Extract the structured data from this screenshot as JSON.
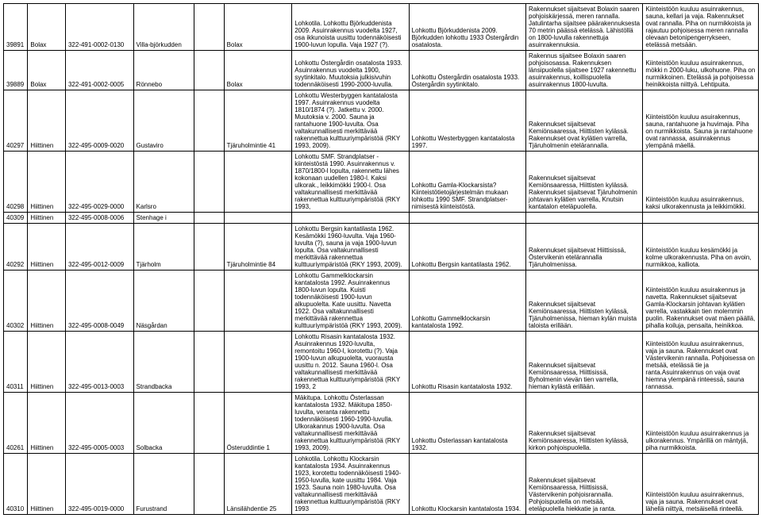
{
  "table": {
    "font_size": 8,
    "border_color": "#000000",
    "background": "#ffffff",
    "columns": [
      "id",
      "municipality",
      "code",
      "name",
      "blank",
      "address",
      "desc1",
      "desc2",
      "desc3",
      "desc4"
    ],
    "col_widths_pct": [
      3.2,
      5,
      9,
      8,
      4,
      9,
      15.5,
      15.5,
      15.5,
      15.3
    ],
    "rows": [
      {
        "id": "39891",
        "municipality": "Bolax",
        "code": "322-491-0002-0130",
        "name": "Villa-björkudden",
        "blank": "",
        "address": "Bolax",
        "desc1": "Lohkotila. Lohkottu Björkuddenista 2009. Asuinrakennus vuodelta 1927, osa ikkunoista uusittu todennäköisesti 1900-luvun lopulla. Vaja 1927 (?).",
        "desc2": "Lohkottu Björkuddenista 2009. Björkudden lohkottu 1933 Östergårdin osatalosta.",
        "desc3": "Rakennukset sijaitsevat Bolaxin saaren pohjoiskärjessä, meren rannalla. Jatulintarha sijaitsee päärakennuksesta 70 metrin päässä etelässä. Lähistöllä on 1800-luvulla rakennettuja asuinrakennuksia.",
        "desc4": "Kiinteistöön kuuluu asuinrakennus, sauna, kellari ja vaja. Rakennukset ovat rannalla. Piha on nurmikkoista ja rajautuu pohjoisessa meren rannalla olevaan betonipengerrykseen, etelässä metsään."
      },
      {
        "id": "39889",
        "municipality": "Bolax",
        "code": "322-491-0002-0005",
        "name": "Rönnebo",
        "blank": "",
        "address": "Bolax",
        "desc1": "Lohkottu Östergårdin osatalosta 1933. Asuinrakennus vuodelta 1900, syytinkitalo. Muutoksia julkisivuhin todennäköisesti 1990-2000-luvulla.",
        "desc2": "Lohkottu Östergårdin osatalosta 1933. Östergårdin syytinkitalo.",
        "desc3": "Rakennus sijaitsee Bolaxin saaren pohjoisosassa. Rakennuksen länsipuolella sijaitsee 1927 rakennettu asuinrakennus, koillispuolella asuinrakennus 1800-luvulta.",
        "desc4": "Kiinteistöön kuuluu asuinrakennus, mökki n 2000-luku, ulkohuone.  Piha on nurmikkoinen. Etelässä ja pohjoisessa heinikkoista niittyä. Lehtipuita."
      },
      {
        "id": "40297",
        "municipality": "Hiittinen",
        "code": "322-495-0009-0020",
        "name": "Gustaviro",
        "blank": "",
        "address": "Tjäruholmintie 41",
        "desc1": "Lohkottu Westerbyggen kantatalosta 1997. Asuinrakennus vuodelta 1810/1874 (?). Jatkettu v. 2000. Muutoksia v. 2000. Sauna ja rantahuone 1900-luvulta. Osa valtakunnallisesti merkittävää rakennettua kulttuuriympäristöä (RKY 1993, 2009).",
        "desc2": "Lohkottu Westerbyggen kantatalosta 1997.",
        "desc3": "Rakennukset sijaitsevat Kemiönsaaressa, Hiittisten kylässä. Rakennukset ovat kylätien varrella, Tjäruholmenin etelärannalla.",
        "desc4": "Kiinteistöön kuuluu asuirakennus, sauna, rantahuone ja huvimaja. Piha on nurmikkoista. Sauna ja rantahuone ovat rannassa, asuinrakennus ylempänä mäellä."
      },
      {
        "id": "40298",
        "municipality": "Hiittinen",
        "code": "322-495-0029-0000",
        "name": "Karlsro",
        "blank": "",
        "address": "",
        "desc1": "Lohkottu SMF. Strandplatser -kiinteistöstä 1990. Asuinrakennus v. 1870/1800-l lopulta, rakennettu lähes kokonaan uudellen 1980-l. Kaksi ulkorak., leikkimökki 1900-l. Osa valtakunnallisesti merkittävää rakennettua kulttuuriympäristöä (RKY 1993,",
        "desc2": "Lohkottu Gamla-Klockarsista? Kiinteistötietojärjestelmän mukaan lohkottu 1990 SMF. Strandplatser-nimisestä kiinteistöstä.",
        "desc3": "Rakennukset sijaitsevat Kemiönsaaressa, Hiittisten kylässä. Rakennukset sijaitsevat Tjäruholmenin johtavan kylätien varrella, Knutsin kantatalon eteläpuolella.",
        "desc4": "Kiinteistöön kuuluu asuinrakennus, kaksi ulkorakennusta ja leikkimökki."
      },
      {
        "id": "40309",
        "municipality": "Hiittinen",
        "code": "322-495-0008-0006",
        "name": "Stenhage i",
        "blank": "",
        "address": "",
        "desc1": "",
        "desc2": "",
        "desc3": "",
        "desc4": ""
      },
      {
        "id": "40292",
        "municipality": "Hiittinen",
        "code": "322-495-0012-0009",
        "name": "Tjärholm",
        "blank": "",
        "address": "Tjäruholmintie 84",
        "desc1": "Lohkottu Bergsin kantatilasta 1962. Kesämökki 1960-luvulta. Vaja 1960-luvulta (?), sauna ja vaja 1900-luvun lopulta. Osa valtakunnallisesti merkittävää rakennettua kulttuuriympäristöä (RKY 1993, 2009).",
        "desc2": "Lohkottu Bergsin kantatilasta 1962.",
        "desc3": "Rakennukset sijaitsevat Hiittisissä, Östervikenin etelärannalla Tjäruholmenissa.",
        "desc4": "Kiinteistöön kuuluu kesämökki ja kolme ulkorakennusta. Piha on avoin, nurmikkoa, kalliota."
      },
      {
        "id": "40302",
        "municipality": "Hiittinen",
        "code": "322-495-0008-0049",
        "name": "Näsgårdan",
        "blank": "",
        "address": "",
        "desc1": "Lohkottu Gammelklockarsin kantatalosta 1992. Asuinrakennus 1800-luvun lopulta. Kuisti todennäköisesti 1900-luvun alkupuolelta. Kate uusittu. Navetta 1922. Osa valtakunnallisesti merkittävää rakennettua kulttuuriympäristöä (RKY 1993, 2009).",
        "desc2": "Lohkottu Gammelklockarsin kantatalosta 1992.",
        "desc3": "Rakennukset sijaitsevat Kemiönsaaressa, Hiittisten kylässä, Tjäruholmenissa, hieman kylän muista taloista erillään.",
        "desc4": "Kiinteistöön kuuluu asuirakennus ja navetta. Rakennukset sijaitsevat Gamla-Klockarsin johtavan kylätien varrella, vastakkain tien molemmin puolin. Rakennukset ovat mäen päällä, pihalla koiluja, pensaita, heinikkoa."
      },
      {
        "id": "40311",
        "municipality": "Hiittinen",
        "code": "322-495-0013-0003",
        "name": "Strandbacka",
        "blank": "",
        "address": "",
        "desc1": "Lohkottu Risasin kantatalosta 1932. Asuinrakennus 1920-luvulta, remontoitu 1960-l, korotettu (?). Vaja 1900-luvun alkupuolelta, vuorausta uusittu n. 2012. Sauna 1960-l. Osa valtakunnallisesti merkittävää rakennettua kulttuuriympäristöä (RKY 1993, 2",
        "desc2": "Lohkottu Risasin kantatalosta 1932.",
        "desc3": "Rakennukset sijaitsevat Kemiönsaaressa, Hiittisissä, Byholmenin vievän tien varrella, hieman kylästä erillään.",
        "desc4": "Kiinteistöön kuuluu asuinrakennus, vaja ja sauna. Rakennukset ovat Västervikenin rannalla. Pohjoisessa on metsää, etelässä tie ja ranta.Asuinrakennus on vaja ovat hiemna ylempänä rinteessä, sauna rannassa."
      },
      {
        "id": "40261",
        "municipality": "Hiittinen",
        "code": "322-495-0005-0003",
        "name": "Solbacka",
        "blank": "",
        "address": "Österuddintie 1",
        "desc1": "Mäkitupa. Lohkottu Österlassan kantatalosta 1932. Mäkitupa 1850-luvulta, veranta rakennettu todennäköisesti 1960-1990-luvulla. Ulkorakannus 1900-luvulta. Osa valtakunnallisesti merkittävää rakennettua kulttuuriympäristöä (RKY 1993, 2009).",
        "desc2": "Lohkottu Österlassan kantatalosta 1932.",
        "desc3": "Rakennukset sijaitsevat Kemiönsaaressa, Hiittisten kylässä, kirkon pohjoispuolella.",
        "desc4": "Kiinteistöön kuuluu asuinrakennus ja ulkorakennus. Ympärillä on mäntyjä, piha nurmikkoista."
      },
      {
        "id": "40310",
        "municipality": "Hiittinen",
        "code": "322-495-0019-0000",
        "name": "Furustrand",
        "blank": "",
        "address": "Länsilähdentie 25",
        "desc1": "Lohkotila. Lohkottu Klockarsin kantatalosta 1934. Asuinrakennus 1923, korotettu todennäköisesti 1940-1950-luvulla, kate uusittu 1984. Vaja 1923. Sauna noin 1980-luvulta. Osa valtakunnallisesti merkittävää rakennettua kulttuuriympäristöä (RKY 1993",
        "desc2": "Lohkottu Klockarsin kantatalosta 1934.",
        "desc3": "Rakennukset sijaitsevat Kemiönsaaressa, Hiittisissä, Västervikenin pohjoisrannalla. Pohjoispuolella on metsää, eteläpuolella hiekkatie ja ranta.",
        "desc4": "Kiinteistöön kuuluu asuinrakennus, vaja ja sauna. Rakennukset ovat lähellä niittyä, metsäisellä rinteellä."
      }
    ]
  }
}
